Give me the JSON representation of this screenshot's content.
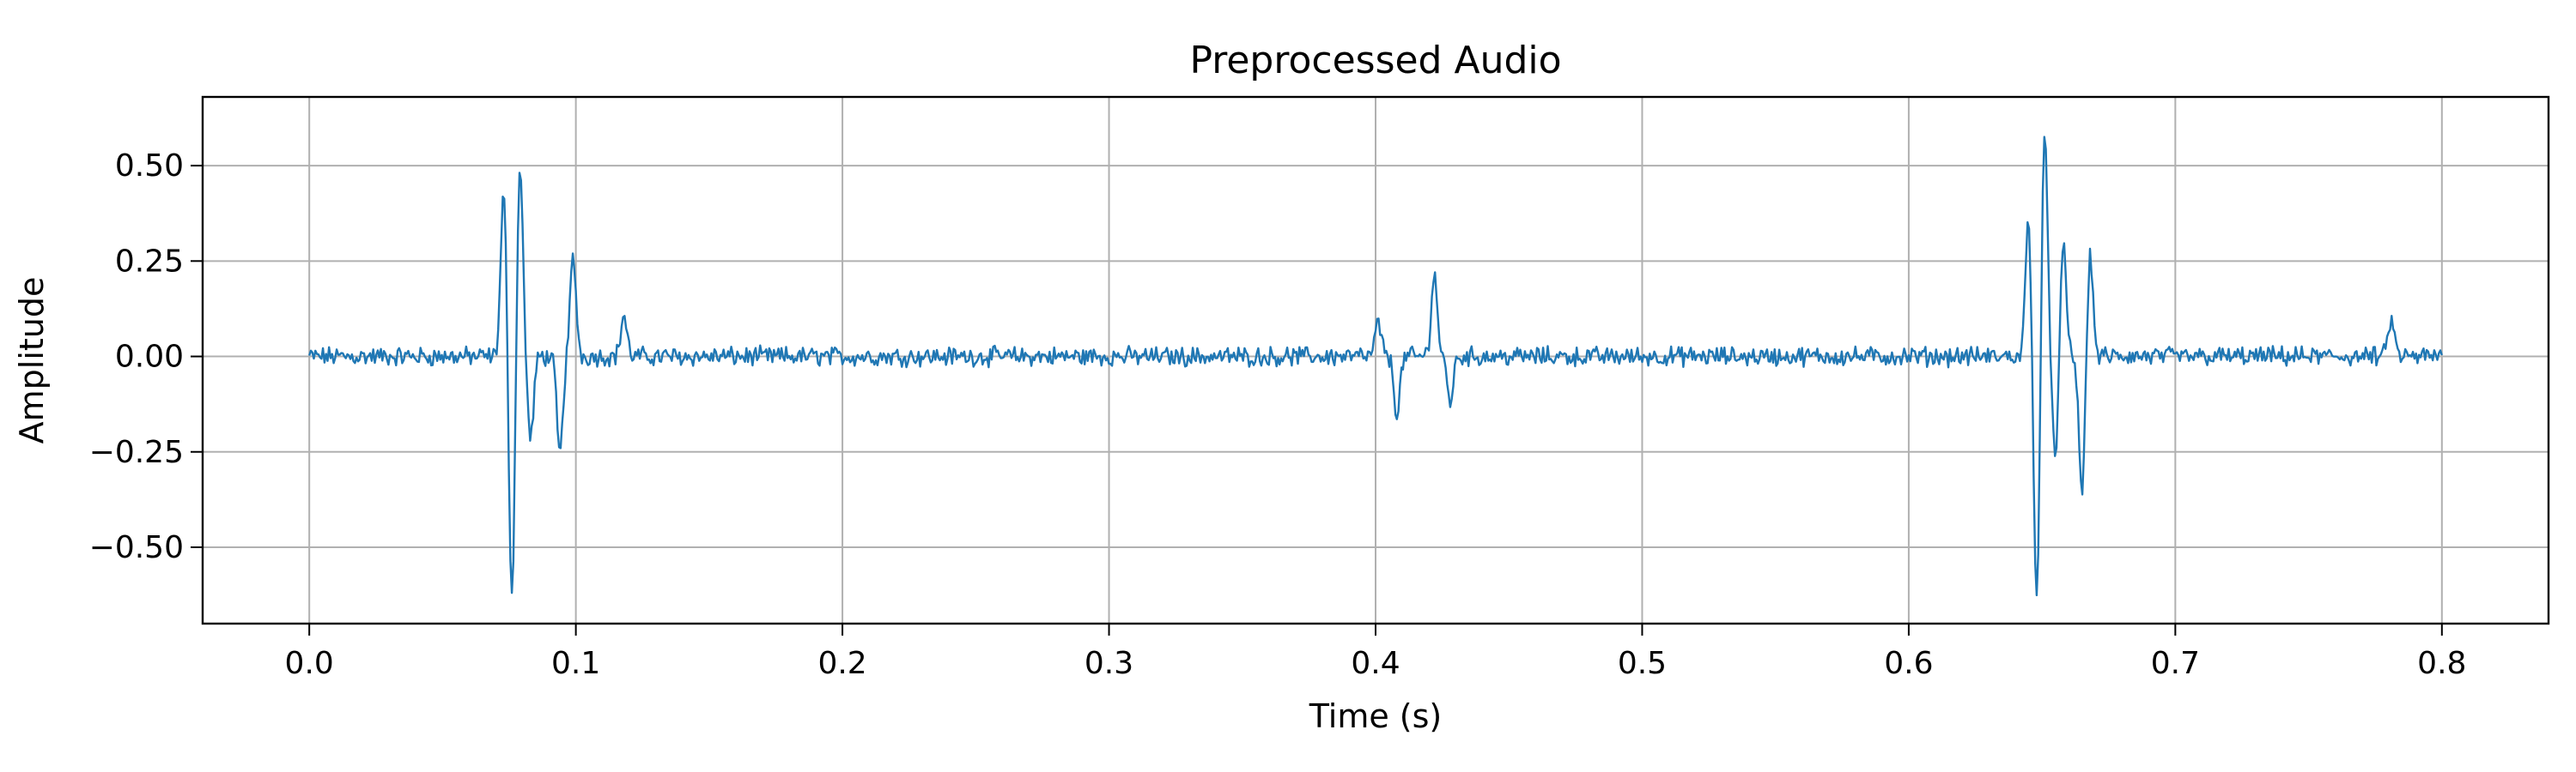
{
  "chart_data": {
    "type": "line",
    "title": "Preprocessed Audio",
    "xlabel": "Time (s)",
    "ylabel": "Amplitude",
    "xlim": [
      -0.04,
      0.84
    ],
    "ylim": [
      -0.7,
      0.68
    ],
    "xticks": [
      0.0,
      0.1,
      0.2,
      0.3,
      0.4,
      0.5,
      0.6,
      0.7,
      0.8
    ],
    "xtick_labels": [
      "0.0",
      "0.1",
      "0.2",
      "0.3",
      "0.4",
      "0.5",
      "0.6",
      "0.7",
      "0.8"
    ],
    "yticks": [
      0.5,
      0.25,
      0.0,
      -0.25,
      -0.5
    ],
    "ytick_labels": [
      "0.50",
      "0.25",
      "0.00",
      "−0.25",
      "−0.50"
    ],
    "grid": true,
    "series": [
      {
        "color": "#1f77b4",
        "x_start": 0.0,
        "x_end": 0.8,
        "noise_amplitude": 0.02,
        "events": [
          {
            "time": 0.073,
            "value": 0.45
          },
          {
            "time": 0.076,
            "value": -0.66
          },
          {
            "time": 0.079,
            "value": 0.52
          },
          {
            "time": 0.083,
            "value": -0.22
          },
          {
            "time": 0.094,
            "value": -0.26
          },
          {
            "time": 0.099,
            "value": 0.26
          },
          {
            "time": 0.118,
            "value": 0.11
          },
          {
            "time": 0.401,
            "value": 0.09
          },
          {
            "time": 0.408,
            "value": -0.15
          },
          {
            "time": 0.422,
            "value": 0.22
          },
          {
            "time": 0.428,
            "value": -0.12
          },
          {
            "time": 0.645,
            "value": 0.38
          },
          {
            "time": 0.648,
            "value": -0.67
          },
          {
            "time": 0.651,
            "value": 0.61
          },
          {
            "time": 0.655,
            "value": -0.28
          },
          {
            "time": 0.658,
            "value": 0.3
          },
          {
            "time": 0.665,
            "value": -0.37
          },
          {
            "time": 0.668,
            "value": 0.27
          },
          {
            "time": 0.781,
            "value": 0.1
          }
        ]
      }
    ]
  }
}
